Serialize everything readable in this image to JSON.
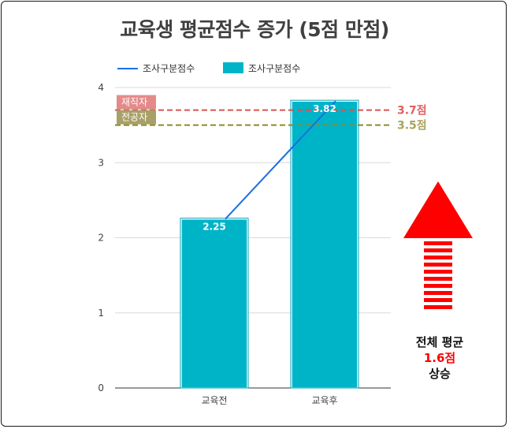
{
  "chart_data": {
    "type": "bar",
    "title": "교육생 평균점수 증가 (5점 만점)",
    "categories": [
      "교육전",
      "교육후"
    ],
    "series": [
      {
        "name": "조사구분점수",
        "kind": "line",
        "values": [
          2.25,
          3.82
        ],
        "color": "#1a6fe0"
      },
      {
        "name": "조사구분점수",
        "kind": "bar",
        "values": [
          2.25,
          3.82
        ],
        "color": "#00b4c8"
      }
    ],
    "data_labels": [
      "2.25",
      "3.82"
    ],
    "ylim": [
      0,
      4
    ],
    "yticks": [
      0,
      1,
      2,
      3,
      4
    ],
    "grid": true,
    "legend": "top-left",
    "reference_lines": [
      {
        "tag": "재직자",
        "value": 3.7,
        "value_label": "3.7점",
        "color": "#d9534f",
        "tag_bg": "#e48a8a",
        "value_color": "#e06060"
      },
      {
        "tag": "전공자",
        "value": 3.5,
        "value_label": "3.5점",
        "color": "#8a8a28",
        "tag_bg": "#a8a068",
        "value_color": "#a9a35c"
      }
    ]
  },
  "annotation": {
    "line1": "전체 평균",
    "line2": "1.6점",
    "line3": "상승",
    "arrow_color": "#ff0000",
    "icon": "up-arrow-icon"
  }
}
